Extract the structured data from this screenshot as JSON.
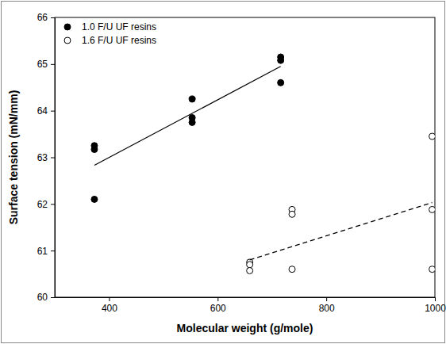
{
  "chart_data": {
    "type": "scatter",
    "x_label": "Molecular weight (g/mole)",
    "y_label": "Surface tension (mN/mm)",
    "xlim": [
      300,
      1000
    ],
    "xticks": [
      400,
      600,
      800,
      1000
    ],
    "ylim": [
      60,
      66
    ],
    "yticks": [
      60,
      61,
      62,
      63,
      64,
      65,
      66
    ],
    "legend": "upper left",
    "series": [
      {
        "name": "1.0 F/U UF resins",
        "type": "scatter",
        "marker": "circle",
        "color": "#000000",
        "x": [
          373,
          373,
          373,
          553,
          553,
          553,
          716,
          716,
          716
        ],
        "values": [
          63.25,
          63.17,
          62.1,
          64.25,
          63.85,
          63.75,
          65.15,
          65.08,
          64.6
        ]
      },
      {
        "name": "1.6 F/U UF resins",
        "type": "scatter",
        "marker": "circle-open",
        "color": "#000000",
        "x": [
          659,
          659,
          659,
          737,
          737,
          737,
          995,
          995,
          995
        ],
        "values": [
          60.75,
          60.7,
          60.57,
          61.88,
          61.78,
          60.6,
          63.45,
          61.88,
          60.6
        ]
      },
      {
        "type": "line",
        "line_style": "solid",
        "color": "#000000",
        "x": [
          373,
          716
        ],
        "values": [
          62.83,
          64.95
        ]
      },
      {
        "type": "line",
        "line_style": "dashed",
        "color": "#000000",
        "x": [
          659,
          995
        ],
        "values": [
          60.8,
          62.03
        ]
      }
    ]
  }
}
